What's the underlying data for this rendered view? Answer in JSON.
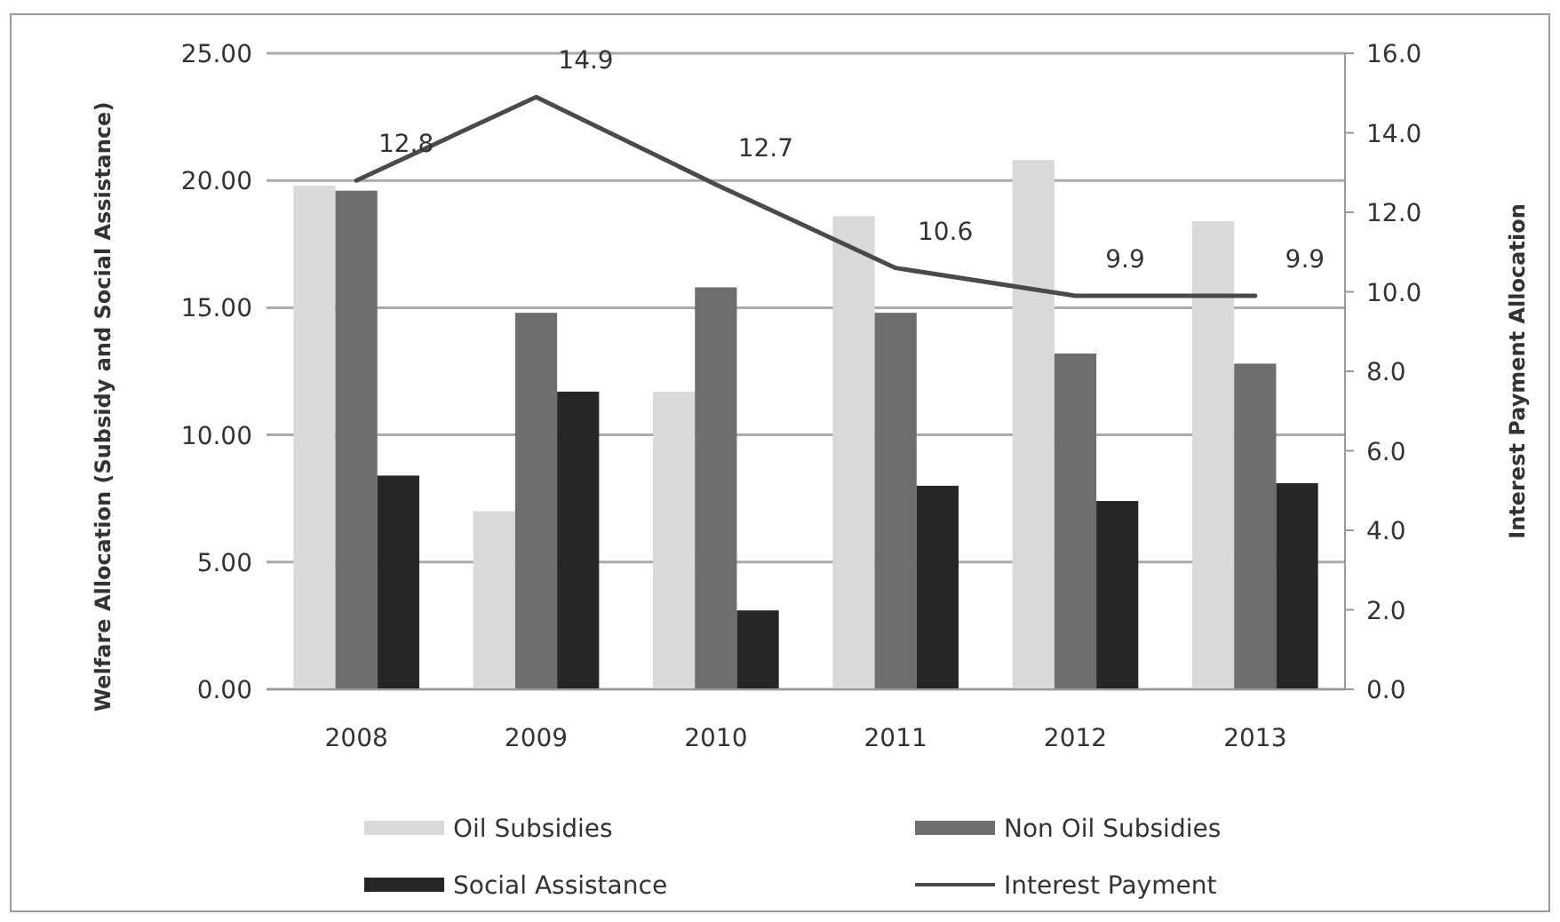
{
  "chart_data": {
    "type": "bar",
    "categories": [
      "2008",
      "2009",
      "2010",
      "2011",
      "2012",
      "2013"
    ],
    "ylabel": "Welfare Allocation  (Subsidy and Social Assistance)",
    "y2label": "Interest  Payment Allocation",
    "ylim": [
      0,
      25
    ],
    "yticks": [
      {
        "value": 0,
        "label": "0.00"
      },
      {
        "value": 5,
        "label": "5.00"
      },
      {
        "value": 10,
        "label": "10.00"
      },
      {
        "value": 15,
        "label": "15.00"
      },
      {
        "value": 20,
        "label": "20.00"
      },
      {
        "value": 25,
        "label": "25.00"
      }
    ],
    "y2lim": [
      0,
      16
    ],
    "y2ticks": [
      {
        "value": 0,
        "label": "0.0"
      },
      {
        "value": 2,
        "label": "2.0"
      },
      {
        "value": 4,
        "label": "4.0"
      },
      {
        "value": 6,
        "label": "6.0"
      },
      {
        "value": 8,
        "label": "8.0"
      },
      {
        "value": 10,
        "label": "10.0"
      },
      {
        "value": 12,
        "label": "12.0"
      },
      {
        "value": 14,
        "label": "14.0"
      },
      {
        "value": 16,
        "label": "16.0"
      }
    ],
    "grid": "y",
    "legend": "bottom",
    "series": [
      {
        "name": "Oil Subsidies",
        "color": "#d9d9d9",
        "values": [
          19.8,
          7.0,
          11.7,
          18.6,
          20.8,
          18.4
        ]
      },
      {
        "name": "Non Oil Subsidies",
        "color": "#6e6e6e",
        "values": [
          19.6,
          14.8,
          15.8,
          14.8,
          13.2,
          12.8
        ]
      },
      {
        "name": "Social Assistance",
        "color": "#262626",
        "values": [
          8.4,
          11.7,
          3.1,
          8.0,
          7.4,
          8.1
        ]
      },
      {
        "name": "Interest Payment",
        "type": "line",
        "axis": "y2",
        "color": "#4a4a4a",
        "values": [
          12.8,
          14.9,
          12.7,
          10.6,
          9.9,
          9.9
        ],
        "value_labels": [
          "12.8",
          "14.9",
          "12.7",
          "10.6",
          "9.9",
          "9.9"
        ]
      }
    ]
  }
}
